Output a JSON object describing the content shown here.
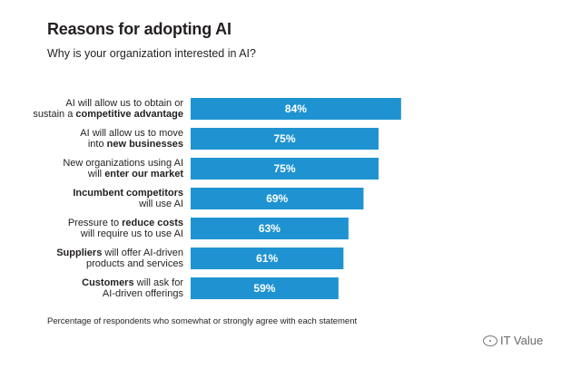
{
  "chart_data": {
    "type": "bar",
    "orientation": "horizontal",
    "title": "Reasons for adopting AI",
    "subtitle": "Why is your organization interested in AI?",
    "categories": [
      [
        [
          {
            "t": "AI will allow us to obtain or",
            "b": false
          }
        ],
        [
          {
            "t": "sustain a ",
            "b": false
          },
          {
            "t": "competitive advantage",
            "b": true
          }
        ]
      ],
      [
        [
          {
            "t": "AI will allow us to move",
            "b": false
          }
        ],
        [
          {
            "t": "into ",
            "b": false
          },
          {
            "t": "new businesses",
            "b": true
          }
        ]
      ],
      [
        [
          {
            "t": "New organizations using AI",
            "b": false
          }
        ],
        [
          {
            "t": "will ",
            "b": false
          },
          {
            "t": "enter our market",
            "b": true
          }
        ]
      ],
      [
        [
          {
            "t": "Incumbent competitors",
            "b": true
          }
        ],
        [
          {
            "t": "will use AI",
            "b": false
          }
        ]
      ],
      [
        [
          {
            "t": "Pressure to ",
            "b": false
          },
          {
            "t": "reduce costs",
            "b": true
          }
        ],
        [
          {
            "t": "will require us to use AI",
            "b": false
          }
        ]
      ],
      [
        [
          {
            "t": "Suppliers",
            "b": true
          },
          {
            "t": " will offer AI-driven",
            "b": false
          }
        ],
        [
          {
            "t": "products and services",
            "b": false
          }
        ]
      ],
      [
        [
          {
            "t": "Customers",
            "b": true
          },
          {
            "t": " will ask for",
            "b": false
          }
        ],
        [
          {
            "t": "AI-driven offerings",
            "b": false
          }
        ]
      ]
    ],
    "values": [
      84,
      75,
      75,
      69,
      63,
      61,
      59
    ],
    "value_labels": [
      "84%",
      "75%",
      "75%",
      "69%",
      "63%",
      "61%",
      "59%"
    ],
    "bar_color": "#1f93d1",
    "legend": "none",
    "grid": false
  },
  "footnote": "Percentage of respondents who somewhat or strongly agree with each statement",
  "watermark": "IT Value"
}
